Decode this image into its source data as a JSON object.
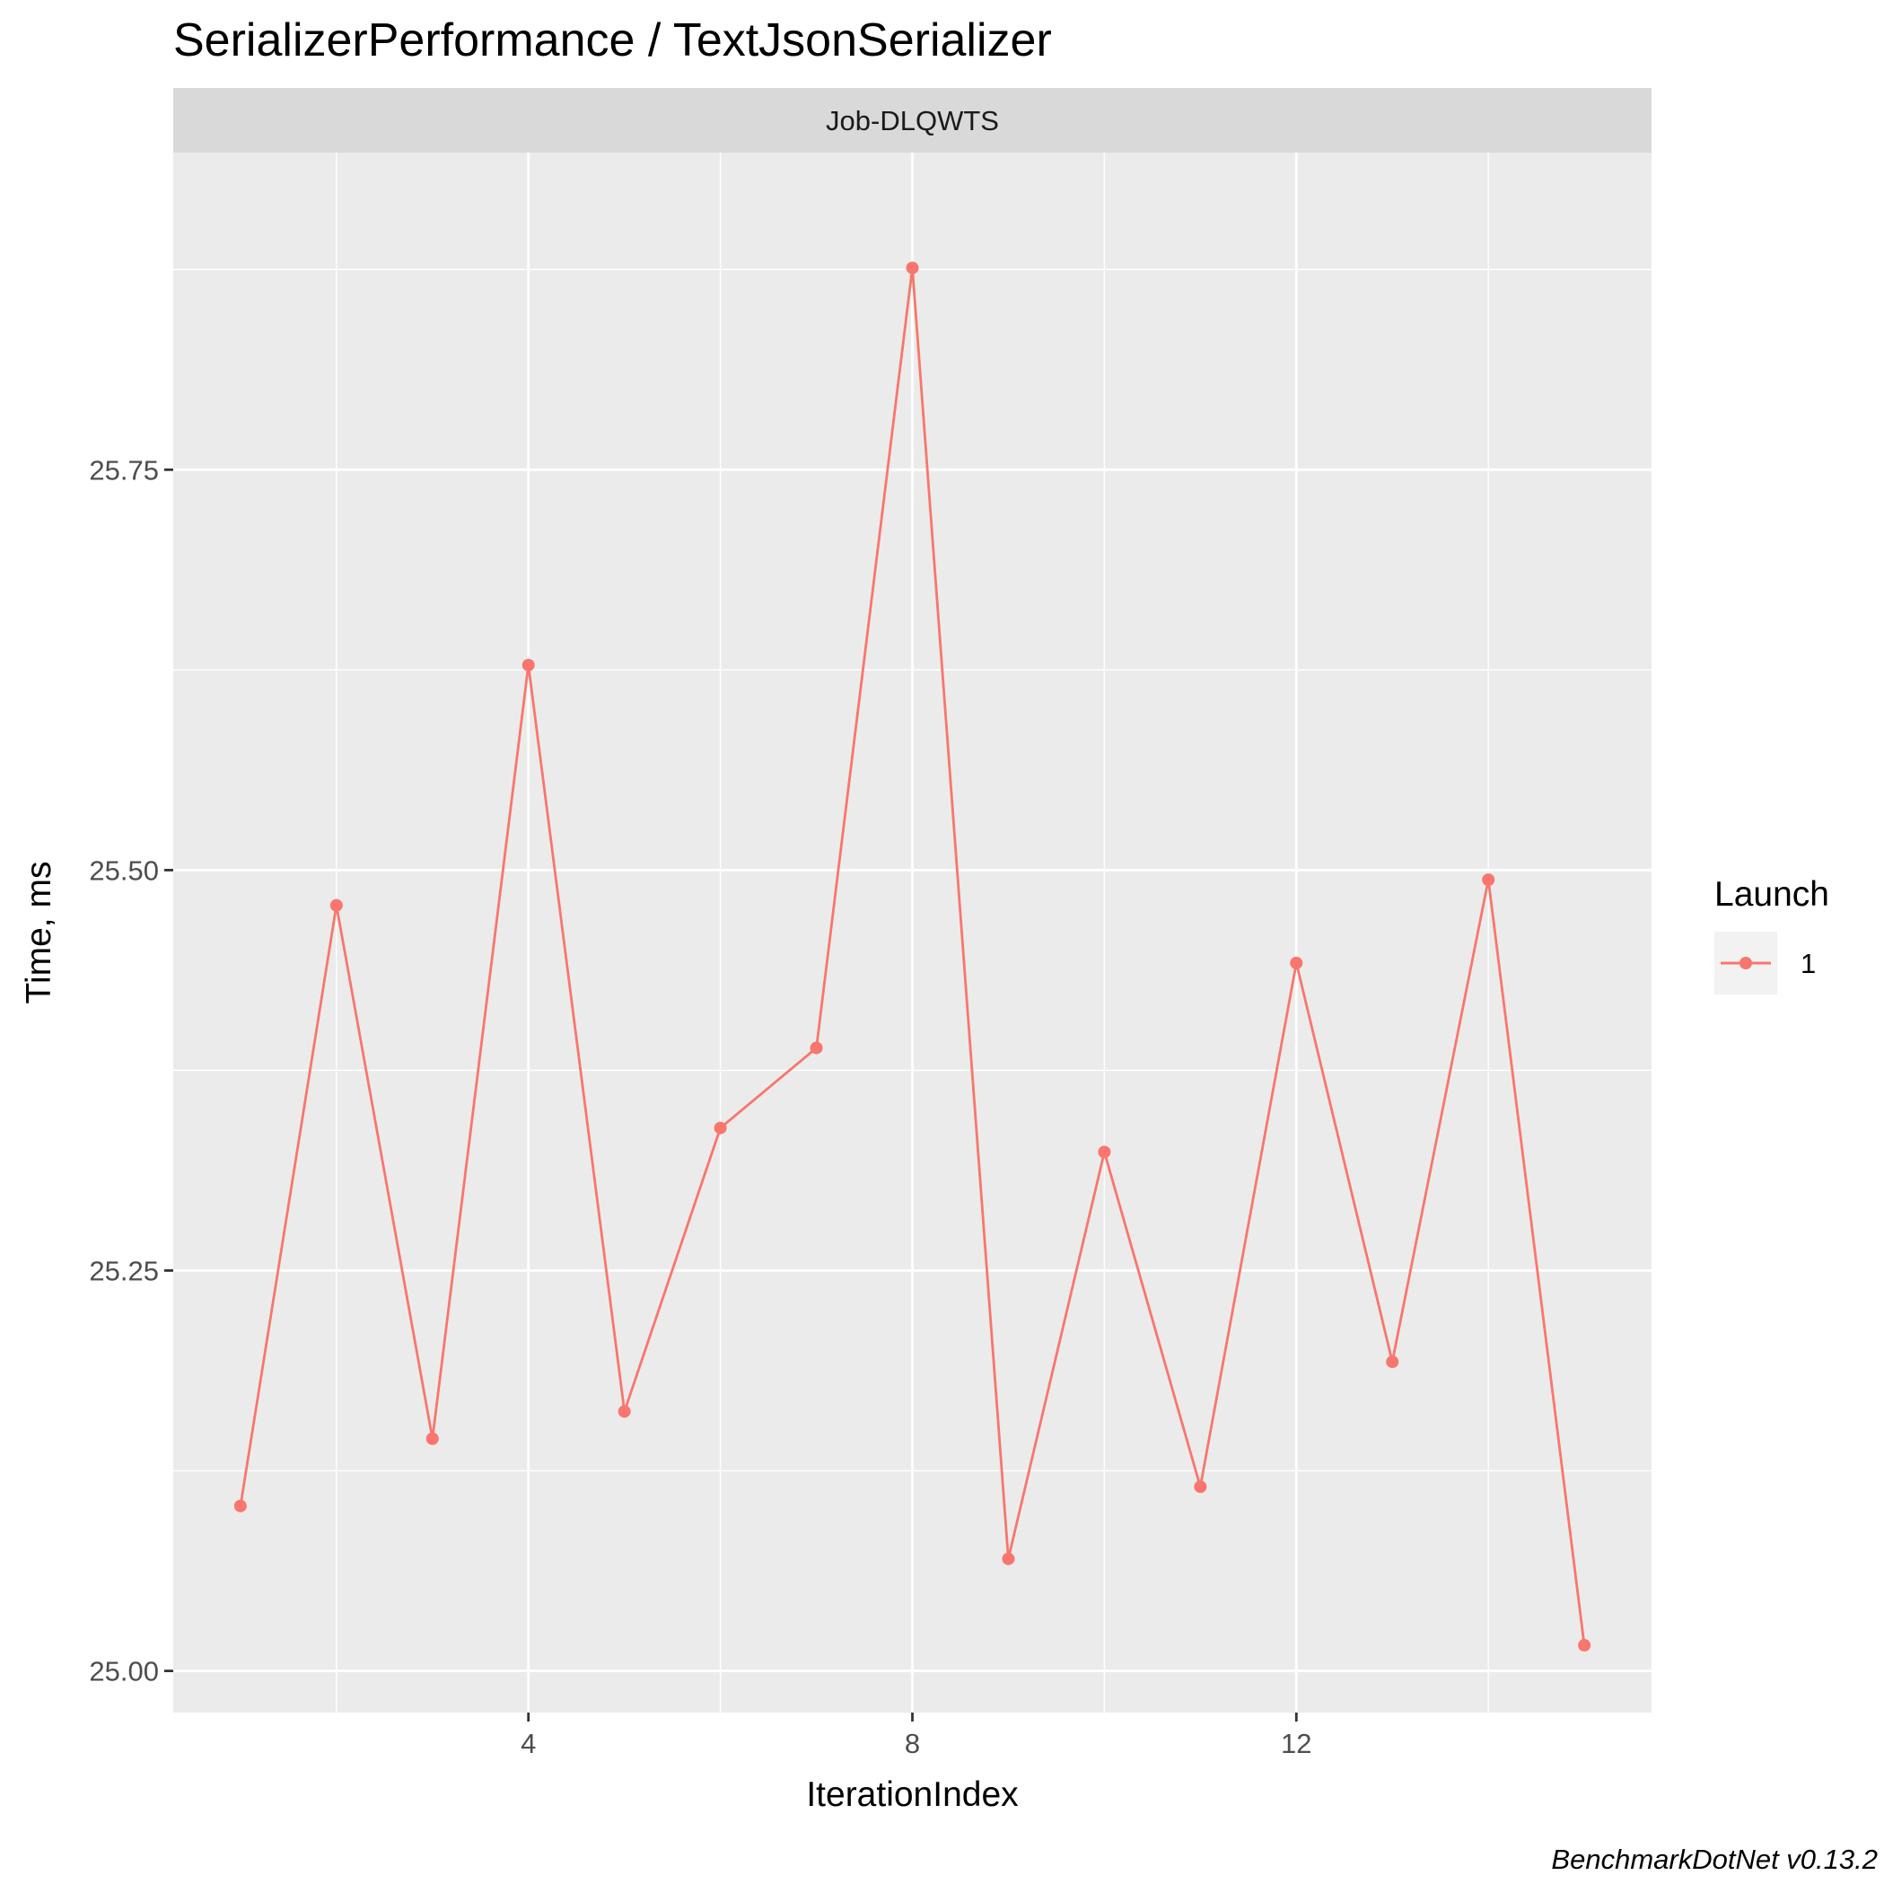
{
  "chart_data": {
    "type": "line",
    "title": "SerializerPerformance / TextJsonSerializer",
    "facet_label": "Job-DLQWTS",
    "xlabel": "IterationIndex",
    "ylabel": "Time, ms",
    "caption": "BenchmarkDotNet v0.13.2",
    "xlim": [
      0.3,
      15.7
    ],
    "ylim": [
      24.974,
      25.948
    ],
    "x_ticks": [
      4,
      8,
      12
    ],
    "x_tick_labels": [
      "4",
      "8",
      "12"
    ],
    "y_ticks": [
      25.0,
      25.25,
      25.5,
      25.75
    ],
    "y_tick_labels": [
      "25.00",
      "25.25",
      "25.50",
      "25.75"
    ],
    "grid": true,
    "legend": {
      "title": "Launch",
      "placement": "right",
      "entries": [
        "1"
      ]
    },
    "series": [
      {
        "name": "1",
        "color": "#F8766D",
        "x": [
          1,
          2,
          3,
          4,
          5,
          6,
          7,
          8,
          9,
          10,
          11,
          12,
          13,
          14,
          15
        ],
        "values": [
          25.103,
          25.478,
          25.145,
          25.628,
          25.162,
          25.339,
          25.389,
          25.876,
          25.07,
          25.324,
          25.115,
          25.442,
          25.193,
          25.494,
          25.016
        ]
      }
    ]
  }
}
